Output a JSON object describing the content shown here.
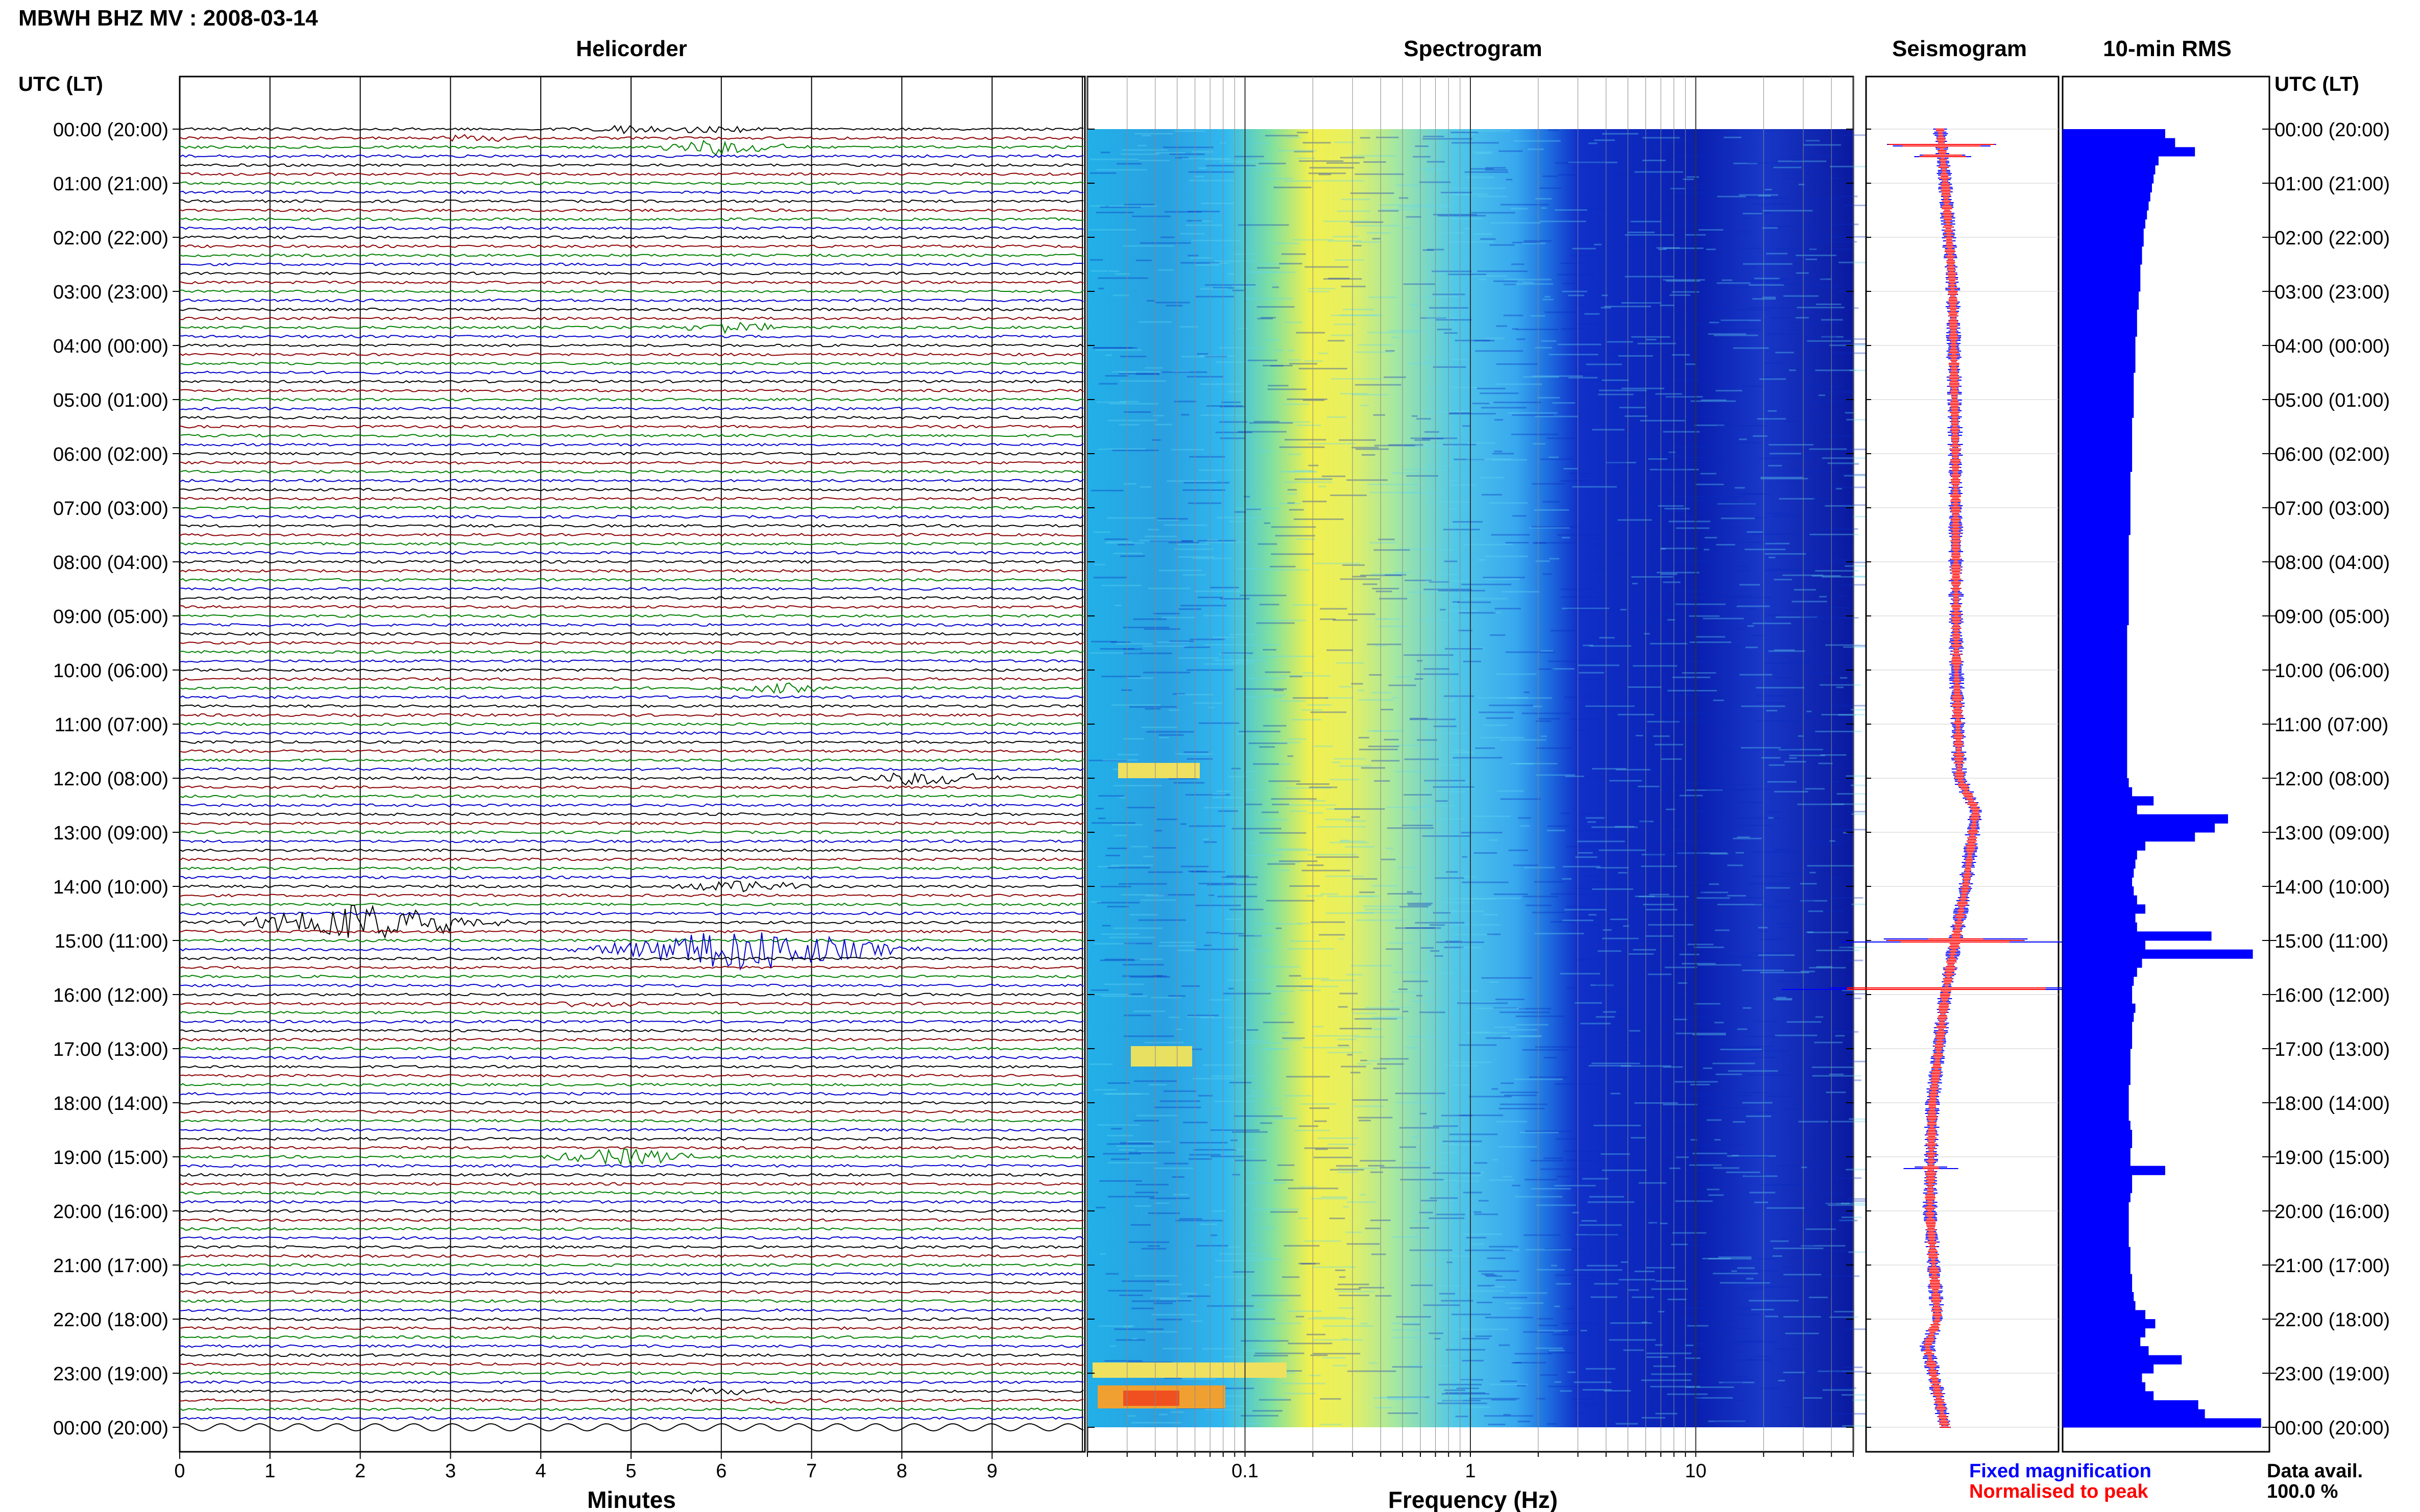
{
  "header": {
    "station_title": "MBWH BHZ MV : 2008-03-14",
    "panel_titles": {
      "helicorder": "Helicorder",
      "spectrogram": "Spectrogram",
      "seismogram": "Seismogram",
      "rms": "10-min RMS"
    },
    "time_axis_label_left": "UTC (LT)",
    "time_axis_label_right": "UTC (LT)"
  },
  "axes": {
    "helicorder_xlabel": "Minutes",
    "spectrogram_xlabel": "Frequency (Hz)"
  },
  "legend": {
    "fixed": "Fixed magnification",
    "normalised": "Normalised to peak",
    "fixed_color": "#0000ff",
    "normalised_color": "#ff0000"
  },
  "data_avail": {
    "label": "Data avail.",
    "value": "100.0 %"
  },
  "colors": {
    "trace_cycle": [
      "#000000",
      "#8b0000",
      "#008000",
      "#0000cd"
    ],
    "rms_fill": "#0000ff",
    "spectrogram_low": "#0a1aa0",
    "spectrogram_high": "#ffff40"
  },
  "chart_data": [
    {
      "type": "line",
      "name": "helicorder",
      "title": "Helicorder",
      "xlabel": "Minutes",
      "xlim": [
        0,
        10
      ],
      "x_ticks": [
        0,
        1,
        2,
        3,
        4,
        5,
        6,
        7,
        8,
        9
      ],
      "time_labels": [
        "00:00 (20:00)",
        "01:00 (21:00)",
        "02:00 (22:00)",
        "03:00 (23:00)",
        "04:00 (00:00)",
        "05:00 (01:00)",
        "06:00 (02:00)",
        "07:00 (03:00)",
        "08:00 (04:00)",
        "09:00 (05:00)",
        "10:00 (06:00)",
        "11:00 (07:00)",
        "12:00 (08:00)",
        "13:00 (09:00)",
        "14:00 (10:00)",
        "15:00 (11:00)",
        "16:00 (12:00)",
        "17:00 (13:00)",
        "18:00 (14:00)",
        "19:00 (15:00)",
        "20:00 (16:00)",
        "21:00 (17:00)",
        "22:00 (18:00)",
        "23:00 (19:00)",
        "00:00 (20:00)"
      ],
      "rows_per_hour": 6,
      "events": [
        {
          "row": 0,
          "minute": 5.0,
          "amp": 0.6
        },
        {
          "row": 0,
          "minute": 5.9,
          "amp": 0.6
        },
        {
          "row": 1,
          "minute": 3.3,
          "amp": 0.5
        },
        {
          "row": 2,
          "minute": 6.0,
          "amp": 1.0
        },
        {
          "row": 22,
          "minute": 6.1,
          "amp": 0.7
        },
        {
          "row": 62,
          "minute": 6.7,
          "amp": 0.6
        },
        {
          "row": 72,
          "minute": 8.3,
          "amp": 1.0
        },
        {
          "row": 84,
          "minute": 6.2,
          "amp": 0.9
        },
        {
          "row": 88,
          "minute": 2.1,
          "amp": 2.5
        },
        {
          "row": 91,
          "minute": 6.3,
          "amp": 3.0
        },
        {
          "row": 97,
          "minute": 4.6,
          "amp": 0.5
        },
        {
          "row": 114,
          "minute": 4.9,
          "amp": 1.2
        },
        {
          "row": 140,
          "minute": 6.0,
          "amp": 0.5
        },
        {
          "row": 141,
          "minute": 6.7,
          "amp": 0.5
        }
      ]
    },
    {
      "type": "heatmap",
      "name": "spectrogram",
      "title": "Spectrogram",
      "xlabel": "Frequency (Hz)",
      "x_scale": "log",
      "xlim": [
        0.02,
        50
      ],
      "x_tick_labels": [
        0.1,
        1,
        10
      ],
      "peak_band_hz": [
        0.15,
        0.5
      ]
    },
    {
      "type": "line",
      "name": "seismogram",
      "title": "Seismogram",
      "series": [
        {
          "name": "Fixed magnification",
          "color": "#0000ff"
        },
        {
          "name": "Normalised to peak",
          "color": "#ff0000"
        }
      ]
    },
    {
      "type": "bar",
      "name": "rms",
      "title": "10-min RMS",
      "orientation": "horizontal",
      "values": [
        0.62,
        0.68,
        0.8,
        0.58,
        0.56,
        0.55,
        0.54,
        0.53,
        0.52,
        0.51,
        0.5,
        0.49,
        0.49,
        0.48,
        0.48,
        0.47,
        0.47,
        0.47,
        0.46,
        0.46,
        0.45,
        0.45,
        0.45,
        0.44,
        0.44,
        0.44,
        0.44,
        0.43,
        0.43,
        0.43,
        0.43,
        0.43,
        0.42,
        0.42,
        0.42,
        0.42,
        0.42,
        0.42,
        0.41,
        0.41,
        0.41,
        0.41,
        0.41,
        0.41,
        0.41,
        0.4,
        0.4,
        0.4,
        0.4,
        0.4,
        0.4,
        0.4,
        0.4,
        0.4,
        0.4,
        0.39,
        0.39,
        0.39,
        0.39,
        0.39,
        0.39,
        0.39,
        0.39,
        0.39,
        0.39,
        0.39,
        0.39,
        0.39,
        0.39,
        0.39,
        0.39,
        0.39,
        0.4,
        0.42,
        0.55,
        0.45,
        1.0,
        0.92,
        0.8,
        0.5,
        0.45,
        0.44,
        0.43,
        0.42,
        0.43,
        0.45,
        0.5,
        0.44,
        0.45,
        0.9,
        0.5,
        1.15,
        0.48,
        0.45,
        0.43,
        0.42,
        0.42,
        0.44,
        0.43,
        0.42,
        0.42,
        0.42,
        0.41,
        0.41,
        0.41,
        0.41,
        0.4,
        0.4,
        0.4,
        0.4,
        0.41,
        0.42,
        0.42,
        0.41,
        0.41,
        0.62,
        0.42,
        0.42,
        0.41,
        0.4,
        0.4,
        0.4,
        0.4,
        0.4,
        0.41,
        0.41,
        0.41,
        0.42,
        0.42,
        0.43,
        0.44,
        0.5,
        0.56,
        0.5,
        0.47,
        0.52,
        0.72,
        0.55,
        0.48,
        0.5,
        0.55,
        0.82,
        0.86,
        1.2
      ]
    }
  ]
}
